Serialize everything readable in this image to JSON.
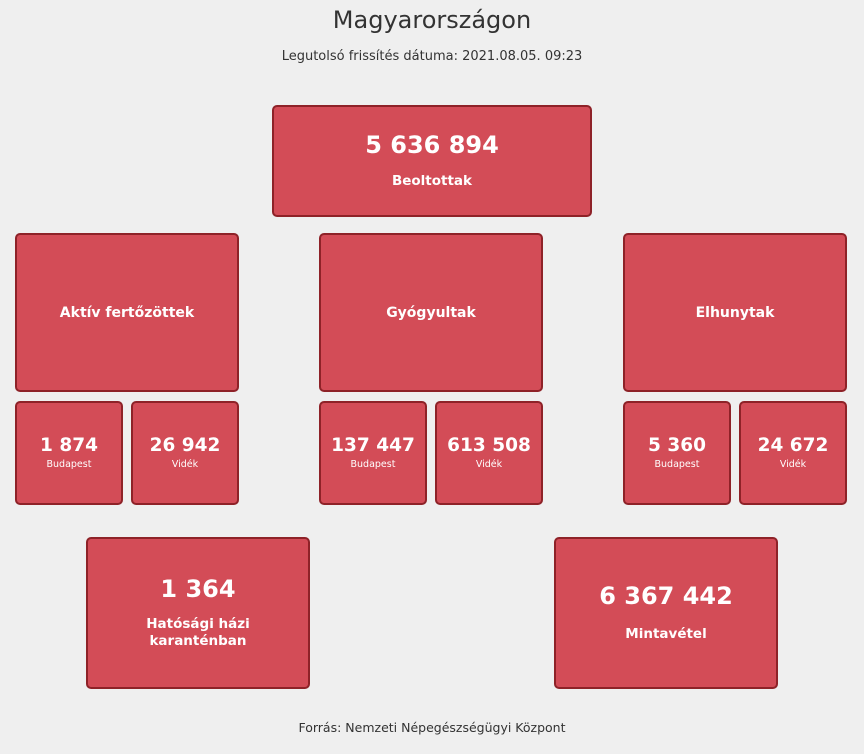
{
  "header": {
    "title": "Magyarországon",
    "last_update": "Legutolsó frissítés dátuma: 2021.08.05. 09:23"
  },
  "vaccinated": {
    "value": "5 636 894",
    "label": "Beoltottak"
  },
  "categories": [
    {
      "label": "Aktív fertőzöttek",
      "budapest": {
        "value": "1 874",
        "label": "Budapest"
      },
      "videk": {
        "value": "26 942",
        "label": "Vidék"
      }
    },
    {
      "label": "Gyógyultak",
      "budapest": {
        "value": "137 447",
        "label": "Budapest"
      },
      "videk": {
        "value": "613 508",
        "label": "Vidék"
      }
    },
    {
      "label": "Elhunytak",
      "budapest": {
        "value": "5 360",
        "label": "Budapest"
      },
      "videk": {
        "value": "24 672",
        "label": "Vidék"
      }
    }
  ],
  "quarantine": {
    "value": "1 364",
    "label": "Hatósági házi karanténban"
  },
  "sampling": {
    "value": "6 367 442",
    "label": "Mintavétel"
  },
  "footer": {
    "source": "Forrás: Nemzeti Népegészségügyi Központ"
  },
  "colors": {
    "box_fill": "#d34c57",
    "box_border": "#8e2228",
    "background": "#efefef"
  }
}
